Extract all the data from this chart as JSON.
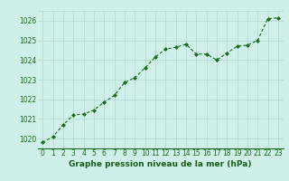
{
  "x": [
    0,
    1,
    2,
    3,
    4,
    5,
    6,
    7,
    8,
    9,
    10,
    11,
    12,
    13,
    14,
    15,
    16,
    17,
    18,
    19,
    20,
    21,
    22,
    23
  ],
  "y": [
    1019.8,
    1020.1,
    1020.7,
    1021.2,
    1021.25,
    1021.45,
    1021.85,
    1022.2,
    1022.85,
    1023.1,
    1023.6,
    1024.15,
    1024.55,
    1024.65,
    1024.8,
    1024.3,
    1024.3,
    1024.0,
    1024.35,
    1024.7,
    1024.75,
    1025.0,
    1026.1,
    1026.15
  ],
  "ylim": [
    1019.5,
    1026.5
  ],
  "yticks": [
    1020,
    1021,
    1022,
    1023,
    1024,
    1025,
    1026
  ],
  "xlim": [
    -0.5,
    23.5
  ],
  "xticks": [
    0,
    1,
    2,
    3,
    4,
    5,
    6,
    7,
    8,
    9,
    10,
    11,
    12,
    13,
    14,
    15,
    16,
    17,
    18,
    19,
    20,
    21,
    22,
    23
  ],
  "line_color": "#1a6b1a",
  "marker_color": "#1a6b1a",
  "bg_color": "#cef0e8",
  "grid_color": "#b0d8cc",
  "xlabel": "Graphe pression niveau de la mer (hPa)",
  "xlabel_color": "#1a5c1a",
  "tick_color": "#1a6b1a",
  "axis_label_fontsize": 6.5,
  "tick_fontsize": 5.5
}
